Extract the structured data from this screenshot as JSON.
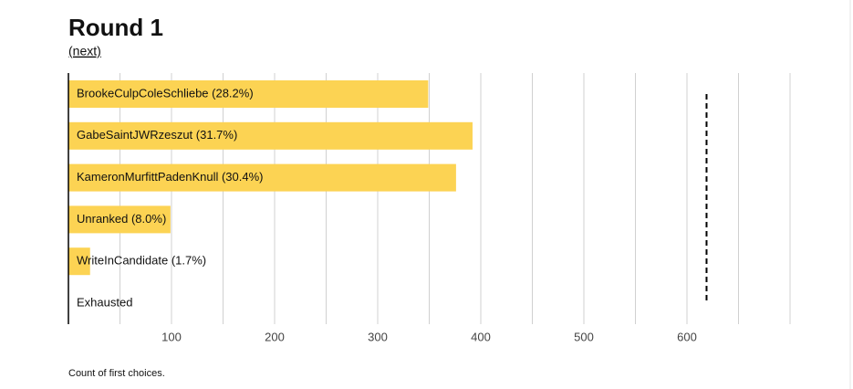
{
  "chart_data": {
    "type": "bar",
    "orientation": "horizontal",
    "title": "Round 1",
    "link": "(next)",
    "categories": [
      "BrookeCulpColeSchliebe (28.2%)",
      "GabeSaintJWRzeszut (31.7%)",
      "KameronMurfittPadenKnull (30.4%)",
      "Unranked (8.0%)",
      "WriteInCandidate (1.7%)",
      "Exhausted"
    ],
    "values": [
      349,
      392,
      376,
      99,
      21,
      0
    ],
    "color": "#fcd353",
    "xlim": [
      0,
      700
    ],
    "xticks": [
      100,
      200,
      300,
      400,
      500,
      600
    ],
    "grid_lines": [
      50,
      100,
      150,
      200,
      250,
      300,
      350,
      400,
      450,
      500,
      550,
      600,
      650,
      700
    ],
    "threshold": 619,
    "caption": "Count of first choices."
  }
}
